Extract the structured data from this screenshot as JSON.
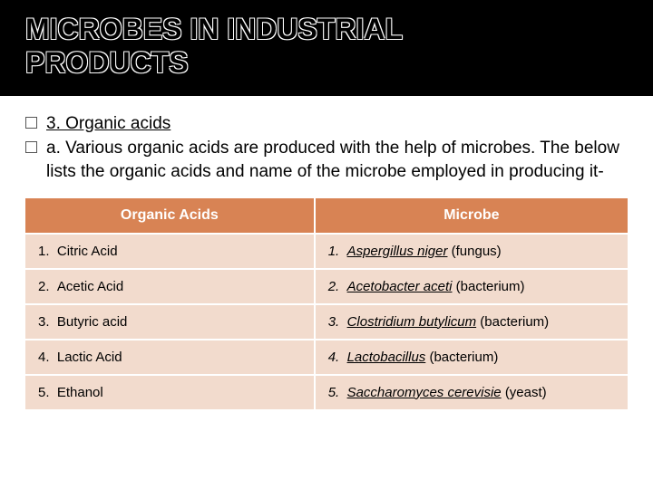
{
  "title": {
    "line1": "MICROBES IN INDUSTRIAL",
    "line2": "PRODUCTS"
  },
  "bullets": [
    {
      "text": "3. Organic acids",
      "underline": true
    },
    {
      "text": "a. Various organic acids are produced with the help of microbes. The below lists the organic acids and name of  the microbe employed in producing it-",
      "underline": false
    }
  ],
  "table": {
    "headers": [
      "Organic Acids",
      "Microbe"
    ],
    "rows": [
      {
        "num": "1.",
        "acid": "Citric Acid",
        "microbe_name": "Aspergillus niger",
        "microbe_type": "(fungus)"
      },
      {
        "num": "2.",
        "acid": "Acetic Acid",
        "microbe_name": "Acetobacter aceti",
        "microbe_type": "(bacterium)"
      },
      {
        "num": "3.",
        "acid": "Butyric acid",
        "microbe_name": "Clostridium butylicum",
        "microbe_type": "(bacterium)"
      },
      {
        "num": "4.",
        "acid": "Lactic Acid",
        "microbe_name": "Lactobacillus",
        "microbe_type": "(bacterium)"
      },
      {
        "num": "5.",
        "acid": "Ethanol",
        "microbe_name": "Saccharomyces cerevisie",
        "microbe_type": "(yeast)"
      }
    ]
  },
  "colors": {
    "header_bg": "#000000",
    "table_header_bg": "#d88354",
    "table_header_text": "#ffffff",
    "table_cell_bg": "#f2dbcd",
    "text": "#000000"
  }
}
